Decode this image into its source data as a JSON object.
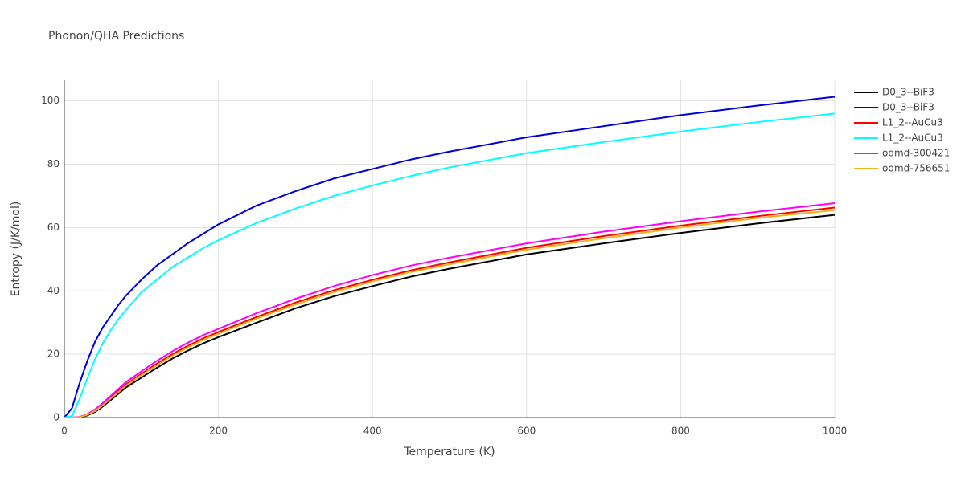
{
  "chart_data": {
    "type": "line",
    "title": "Phonon/QHA Predictions",
    "x_label": "Temperature (K)",
    "y_label": "Entropy (J/K/mol)",
    "x": [
      0,
      10,
      20,
      30,
      40,
      50,
      60,
      70,
      80,
      100,
      120,
      140,
      160,
      180,
      200,
      250,
      300,
      350,
      400,
      450,
      500,
      600,
      700,
      800,
      900,
      1000
    ],
    "series": [
      {
        "name": "D0_3--BiF3",
        "color": "#000000",
        "values": [
          0,
          0,
          0.1,
          0.7,
          1.8,
          3.5,
          5.5,
          7.5,
          9.5,
          12.6,
          15.7,
          18.6,
          21.1,
          23.4,
          25.4,
          30,
          34.5,
          38.3,
          41.5,
          44.5,
          47,
          51.5,
          55,
          58.3,
          61.3,
          64
        ]
      },
      {
        "name": "D0_3--BiF3",
        "color": "#0000dd",
        "values": [
          0,
          3,
          11,
          18,
          24,
          28.5,
          32,
          35.5,
          38.5,
          43.5,
          48,
          51.5,
          55,
          58,
          61,
          67,
          71.5,
          75.5,
          78.5,
          81.5,
          84,
          88.5,
          92,
          95.5,
          98.5,
          101.3
        ]
      },
      {
        "name": "L1_2--AuCu3",
        "color": "#ff0000",
        "values": [
          0,
          0,
          0.2,
          1,
          2.3,
          4.2,
          6.3,
          8.4,
          10.5,
          13.8,
          17,
          20,
          22.6,
          25,
          27,
          31.8,
          36.3,
          40.2,
          43.5,
          46.5,
          49,
          53.6,
          57.3,
          60.6,
          63.6,
          66.3
        ]
      },
      {
        "name": "L1_2--AuCu3",
        "color": "#00ffff",
        "values": [
          0,
          0.5,
          6,
          12.5,
          18.5,
          23.5,
          27.5,
          31,
          34,
          39.5,
          43.5,
          47.5,
          50.5,
          53.5,
          56,
          61.5,
          66,
          70,
          73.3,
          76.3,
          79,
          83.5,
          87,
          90.3,
          93.3,
          96
        ]
      },
      {
        "name": "oqmd-300421",
        "color": "#ff00ff",
        "values": [
          0,
          0,
          0.2,
          1.1,
          2.6,
          4.6,
          6.8,
          9,
          11.2,
          14.6,
          17.9,
          20.9,
          23.6,
          26,
          28,
          33,
          37.5,
          41.5,
          45,
          48,
          50.5,
          55,
          58.7,
          62,
          65,
          67.7
        ]
      },
      {
        "name": "oqmd-756651",
        "color": "#f5b21a",
        "values": [
          0,
          0,
          0.1,
          0.9,
          2.1,
          3.9,
          6,
          8,
          10.1,
          13.4,
          16.5,
          19.5,
          22.1,
          24.5,
          26.5,
          31.3,
          35.7,
          39.6,
          43,
          46,
          48.4,
          53,
          56.6,
          60,
          63,
          65.5
        ]
      }
    ],
    "xlim": [
      0,
      1000
    ],
    "xticks": [
      0,
      200,
      400,
      600,
      800,
      1000
    ],
    "ylim": [
      0,
      106.5
    ],
    "yticks": [
      0,
      20,
      40,
      60,
      80,
      100
    ],
    "grid": true
  }
}
